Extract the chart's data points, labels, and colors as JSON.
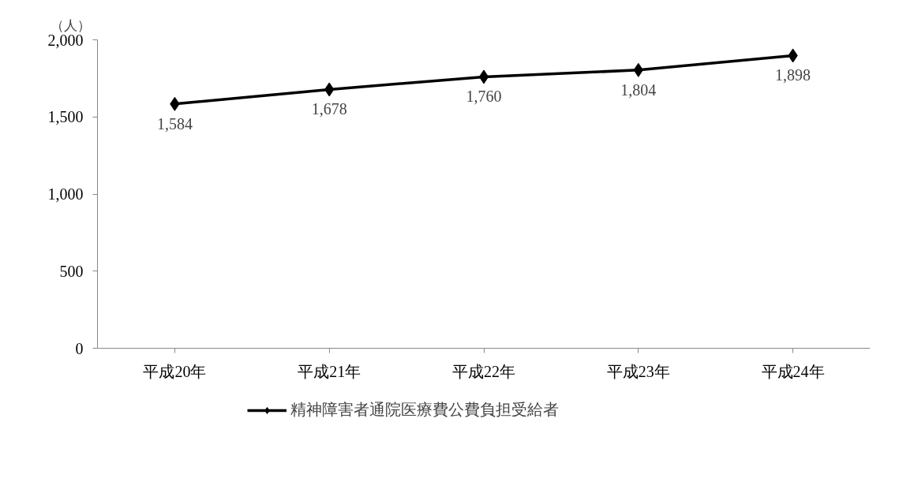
{
  "chart_data": {
    "type": "line",
    "ylabel": "（人）",
    "categories": [
      "平成20年",
      "平成21年",
      "平成22年",
      "平成23年",
      "平成24年"
    ],
    "series": [
      {
        "name": "精神障害者通院医療費公費負担受給者",
        "color": "#000000",
        "values": [
          1584,
          1678,
          1760,
          1804,
          1898
        ]
      }
    ],
    "ylim": [
      0,
      2000
    ],
    "yticks": [
      {
        "value": 0,
        "label": "0"
      },
      {
        "value": 500,
        "label": "500"
      },
      {
        "value": 1000,
        "label": "1,000"
      },
      {
        "value": 1500,
        "label": "1,500"
      },
      {
        "value": 2000,
        "label": "2,000"
      }
    ],
    "value_labels": [
      "1,584",
      "1,678",
      "1,760",
      "1,804",
      "1,898"
    ],
    "grid": false,
    "legend": "bottom",
    "marker": "diamond",
    "line_style": "solid"
  }
}
